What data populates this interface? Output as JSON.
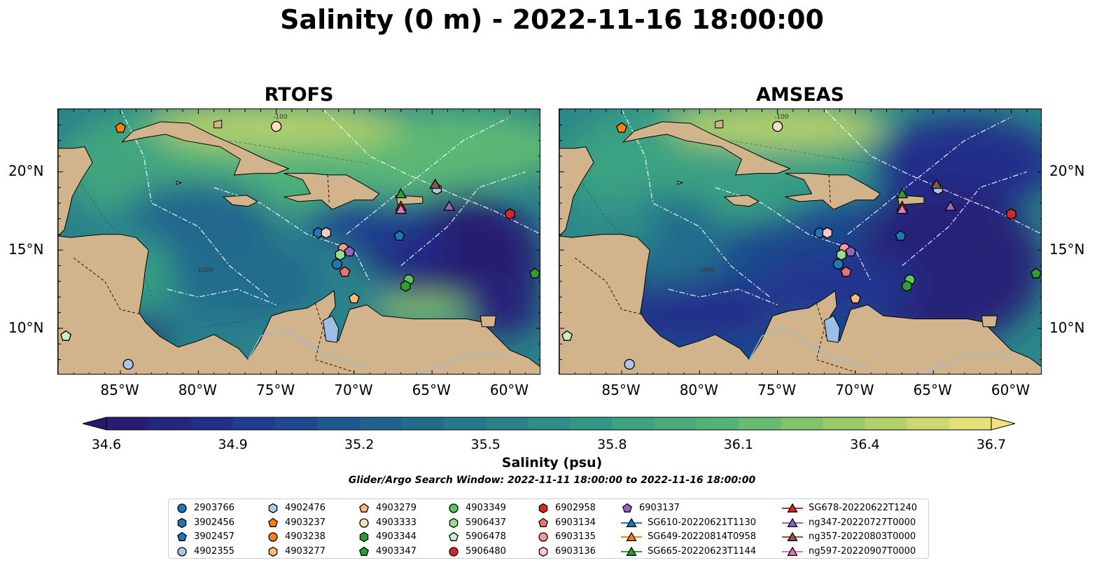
{
  "suptitle": "Salinity (0 m) - 2022-11-16 18:00:00",
  "panels": [
    {
      "title": "RTOFS",
      "scheme": "rtofs"
    },
    {
      "title": "AMSEAS",
      "scheme": "amseas"
    }
  ],
  "x_ticks": [
    "85°W",
    "80°W",
    "75°W",
    "70°W",
    "65°W",
    "60°W"
  ],
  "y_ticks": [
    "20°N",
    "15°N",
    "10°N"
  ],
  "contour_labels": [
    "-100",
    "-1000"
  ],
  "colorbar": {
    "label": "Salinity (psu)",
    "ticks": [
      "34.6",
      "34.9",
      "35.2",
      "35.5",
      "35.8",
      "36.1",
      "36.4",
      "36.7"
    ],
    "colormap": "haline",
    "extend": "both"
  },
  "search_window": "Glider/Argo Search Window: 2022-11-11 18:00:00 to 2022-11-16 18:00:00",
  "legend": [
    {
      "label": "2903766",
      "marker": "circle",
      "color": "#1f77b4"
    },
    {
      "label": "3902456",
      "marker": "hexagon",
      "color": "#1f77b4"
    },
    {
      "label": "3902457",
      "marker": "pentagon",
      "color": "#1f77b4"
    },
    {
      "label": "4902355",
      "marker": "circle",
      "color": "#aec7e8"
    },
    {
      "label": "4902476",
      "marker": "hexagon",
      "color": "#aec7e8"
    },
    {
      "label": "4903237",
      "marker": "pentagon",
      "color": "#ff7f0e"
    },
    {
      "label": "4903238",
      "marker": "circle",
      "color": "#ff7f0e"
    },
    {
      "label": "4903277",
      "marker": "hexagon",
      "color": "#ffbb78"
    },
    {
      "label": "4903279",
      "marker": "pentagon",
      "color": "#ffbb78"
    },
    {
      "label": "4903333",
      "marker": "circle",
      "color": "#ffdfc0"
    },
    {
      "label": "4903344",
      "marker": "hexagon",
      "color": "#2ca02c"
    },
    {
      "label": "4903347",
      "marker": "pentagon",
      "color": "#2ca02c"
    },
    {
      "label": "4903349",
      "marker": "circle",
      "color": "#5cc45c"
    },
    {
      "label": "5906437",
      "marker": "hexagon",
      "color": "#98df8a"
    },
    {
      "label": "5906478",
      "marker": "pentagon",
      "color": "#c8f0c0"
    },
    {
      "label": "5906480",
      "marker": "circle",
      "color": "#d62728"
    },
    {
      "label": "6902958",
      "marker": "hexagon",
      "color": "#d62728"
    },
    {
      "label": "6903134",
      "marker": "pentagon",
      "color": "#f07070"
    },
    {
      "label": "6903135",
      "marker": "circle",
      "color": "#ff9896"
    },
    {
      "label": "6903136",
      "marker": "hexagon",
      "color": "#ffc8c8"
    },
    {
      "label": "6903137",
      "marker": "pentagon",
      "color": "#9467bd"
    },
    {
      "label": "SG610-20220621T1130",
      "marker": "triangle-line",
      "color": "#1f77b4"
    },
    {
      "label": "SG649-20220814T0958",
      "marker": "triangle-line",
      "color": "#ff7f0e"
    },
    {
      "label": "SG665-20220623T1144",
      "marker": "triangle-line",
      "color": "#2ca02c"
    },
    {
      "label": "SG678-20220622T1240",
      "marker": "triangle-line",
      "color": "#d62728"
    },
    {
      "label": "ng347-20220727T0000",
      "marker": "triangle-line",
      "color": "#9467bd"
    },
    {
      "label": "ng357-20220803T0000",
      "marker": "triangle-line",
      "color": "#8c564b"
    },
    {
      "label": "ng597-20220907T0000",
      "marker": "triangle-line",
      "color": "#e377c2"
    }
  ],
  "chart_data": {
    "type": "heatmap",
    "title": "Salinity (0 m) - 2022-11-16 18:00:00",
    "variable": "Salinity (psu)",
    "depth_m": 0,
    "xlim": [
      -89,
      -58
    ],
    "ylim": [
      7,
      24
    ],
    "clim": [
      34.6,
      36.7
    ],
    "color_levels": [
      34.6,
      34.7,
      34.8,
      34.9,
      35.0,
      35.1,
      35.2,
      35.3,
      35.4,
      35.5,
      35.6,
      35.7,
      35.8,
      35.9,
      36.0,
      36.1,
      36.2,
      36.3,
      36.4,
      36.5,
      36.6,
      36.7
    ],
    "panels": [
      "RTOFS",
      "AMSEAS"
    ],
    "observations": [
      {
        "id": "4903237",
        "lon": -85.0,
        "lat": 22.8
      },
      {
        "id": "4903333",
        "lon": -75.0,
        "lat": 22.9
      },
      {
        "id": "4902476",
        "lon": -64.7,
        "lat": 18.9
      },
      {
        "id": "SG665-20220623T1144",
        "lon": -67.0,
        "lat": 18.6
      },
      {
        "id": "SG678-20220622T1240",
        "lon": -67.0,
        "lat": 17.8
      },
      {
        "id": "ng597-20220907T0000",
        "lon": -67.0,
        "lat": 17.6
      },
      {
        "id": "ng357-20220803T0000",
        "lon": -64.8,
        "lat": 19.2
      },
      {
        "id": "ng347-20220727T0000",
        "lon": -63.9,
        "lat": 17.8
      },
      {
        "id": "6902958",
        "lon": -60.0,
        "lat": 17.3
      },
      {
        "id": "3902457",
        "lon": -67.1,
        "lat": 15.9
      },
      {
        "id": "3902456",
        "lon": -72.3,
        "lat": 16.1
      },
      {
        "id": "6903136",
        "lon": -71.8,
        "lat": 16.1
      },
      {
        "id": "6903135",
        "lon": -70.7,
        "lat": 15.1
      },
      {
        "id": "6903137",
        "lon": -70.3,
        "lat": 14.9
      },
      {
        "id": "5906437",
        "lon": -70.9,
        "lat": 14.7
      },
      {
        "id": "2903766",
        "lon": -71.1,
        "lat": 14.1
      },
      {
        "id": "6903134",
        "lon": -70.6,
        "lat": 13.6
      },
      {
        "id": "4903349",
        "lon": -66.5,
        "lat": 13.1
      },
      {
        "id": "4903344",
        "lon": -66.7,
        "lat": 12.7
      },
      {
        "id": "4903347",
        "lon": -58.4,
        "lat": 13.5
      },
      {
        "id": "4903279",
        "lon": -70.0,
        "lat": 11.9
      },
      {
        "id": "5906478",
        "lon": -88.5,
        "lat": 9.5
      },
      {
        "id": "4902355",
        "lon": -84.5,
        "lat": 7.7
      }
    ]
  }
}
